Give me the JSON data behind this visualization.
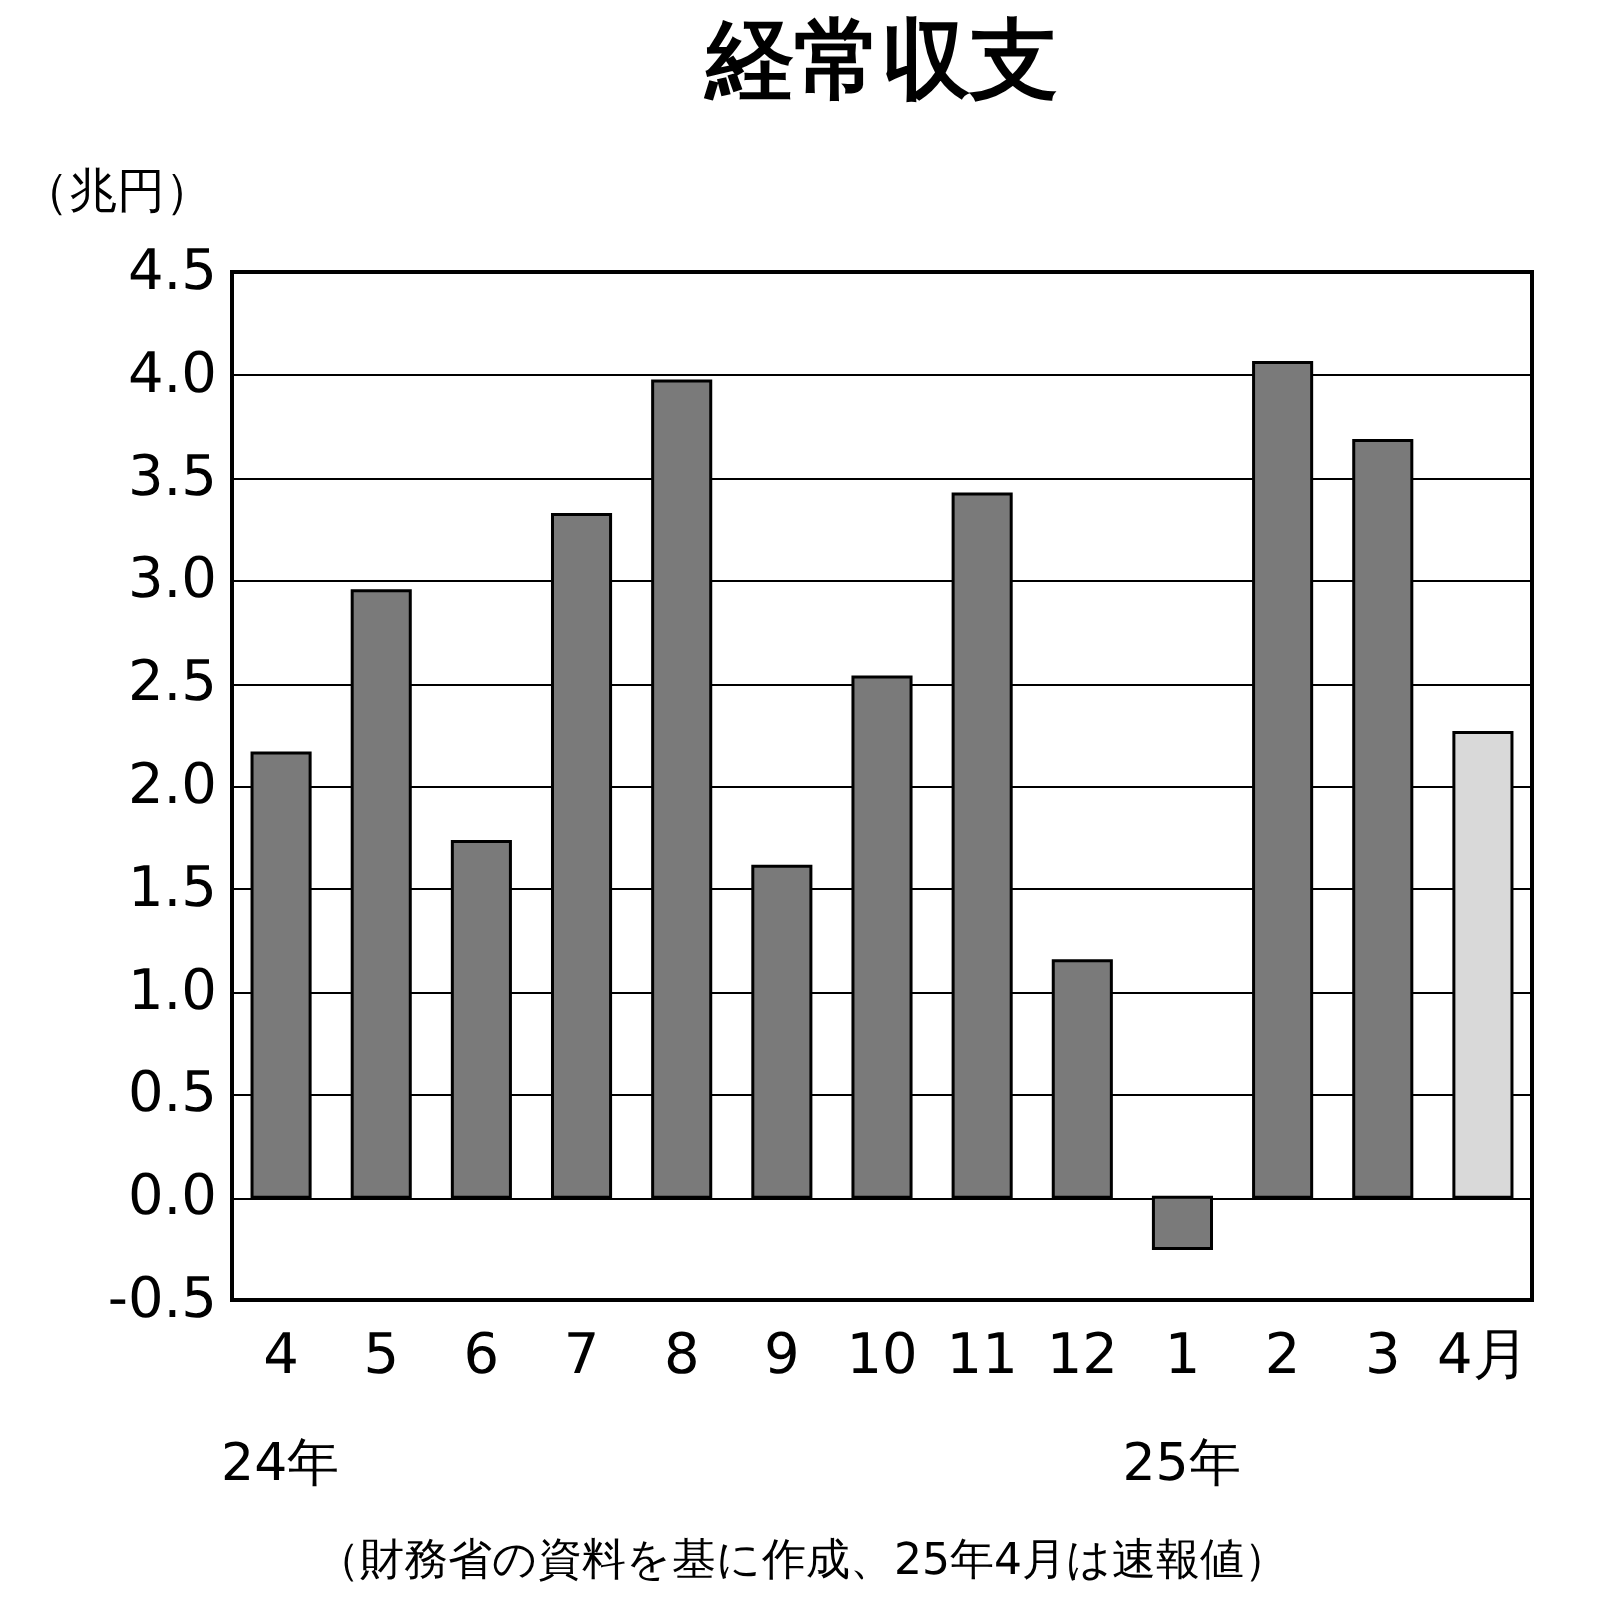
{
  "chart_data": {
    "type": "bar",
    "title": "経常収支",
    "ylabel": "（兆円）",
    "categories": [
      "4",
      "5",
      "6",
      "7",
      "8",
      "9",
      "10",
      "11",
      "12",
      "1",
      "2",
      "3",
      "4月"
    ],
    "values": [
      2.16,
      2.95,
      1.73,
      3.32,
      3.97,
      1.61,
      2.53,
      3.42,
      1.15,
      -0.25,
      4.06,
      3.68,
      2.26
    ],
    "colors": [
      "#7a7a7a",
      "#7a7a7a",
      "#7a7a7a",
      "#7a7a7a",
      "#7a7a7a",
      "#7a7a7a",
      "#7a7a7a",
      "#7a7a7a",
      "#7a7a7a",
      "#7a7a7a",
      "#7a7a7a",
      "#7a7a7a",
      "#d9d9d9"
    ],
    "ylim": [
      -0.5,
      4.5
    ],
    "yticks": [
      -0.5,
      {
        "value": 0,
        "label": "0.0"
      },
      0.5,
      {
        "value": 1,
        "label": "1.0"
      },
      1.5,
      {
        "value": 2,
        "label": "2.0"
      },
      2.5,
      {
        "value": 3,
        "label": "3.0"
      },
      3.5,
      {
        "value": 4,
        "label": "4.0"
      },
      4.5
    ],
    "grid": "y",
    "annotations": [
      "24年",
      "25年",
      "（財務省の資料を基に作成、25年4月は速報値）"
    ]
  }
}
